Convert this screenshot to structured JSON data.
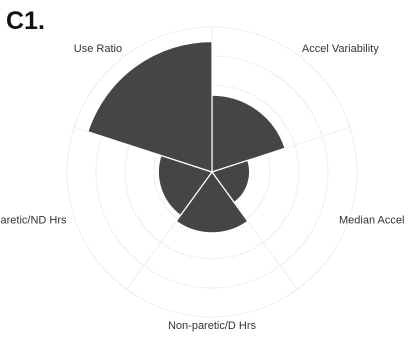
{
  "panel_label": "C1.",
  "chart_data": {
    "type": "polar-bar",
    "categories": [
      "Accel Variability",
      "Median Accel",
      "Non-paretic/D Hrs",
      "Paretic/ND Hrs",
      "Use Ratio"
    ],
    "values": [
      0.53,
      0.26,
      0.42,
      0.37,
      0.9
    ],
    "rlim": [
      0,
      1
    ],
    "start_angle_deg": 0,
    "direction": "clockwise",
    "grid": true,
    "colors": {
      "fill": "#454545",
      "grid": "#eeeeee",
      "text": "#333333"
    }
  }
}
